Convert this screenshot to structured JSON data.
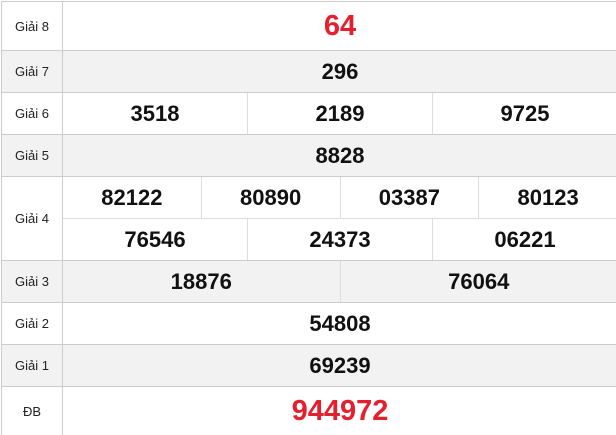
{
  "colors": {
    "special": "#e5202e",
    "alt_row": "#f2f2f2"
  },
  "prizes": [
    {
      "label": "Giải 8",
      "numbers": [
        "64"
      ]
    },
    {
      "label": "Giải 7",
      "numbers": [
        "296"
      ]
    },
    {
      "label": "Giải 6",
      "numbers": [
        "3518",
        "2189",
        "9725"
      ]
    },
    {
      "label": "Giải 5",
      "numbers": [
        "8828"
      ]
    },
    {
      "label": "Giải 4",
      "numbers": [
        "82122",
        "80890",
        "03387",
        "80123",
        "76546",
        "24373",
        "06221"
      ]
    },
    {
      "label": "Giải 3",
      "numbers": [
        "18876",
        "76064"
      ]
    },
    {
      "label": "Giải 2",
      "numbers": [
        "54808"
      ]
    },
    {
      "label": "Giải 1",
      "numbers": [
        "69239"
      ]
    },
    {
      "label": "ĐB",
      "numbers": [
        "944972"
      ]
    }
  ]
}
